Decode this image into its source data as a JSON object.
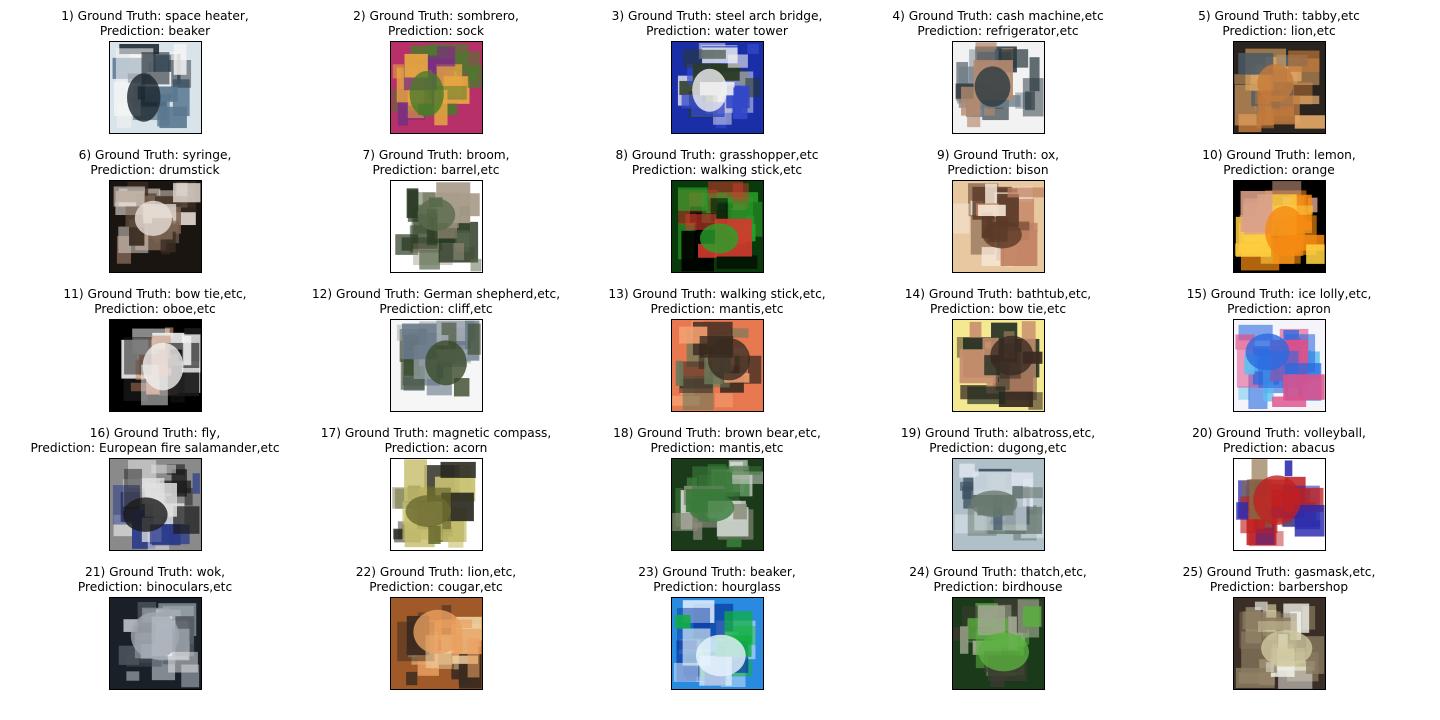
{
  "items": [
    {
      "index": "1)",
      "ground_truth": "space heater,",
      "prediction": "beaker",
      "colors": [
        "#d9e3ea",
        "#1c2730",
        "#5a7890",
        "#f4f4f4"
      ]
    },
    {
      "index": "2)",
      "ground_truth": "sombrero,",
      "prediction": "sock",
      "colors": [
        "#b8306a",
        "#4a7a2c",
        "#e6a640",
        "#7a2f80"
      ]
    },
    {
      "index": "3)",
      "ground_truth": "steel arch bridge,",
      "prediction": "water tower",
      "colors": [
        "#1a2ea8",
        "#f0f0f0",
        "#3348c8",
        "#2a3a22"
      ]
    },
    {
      "index": "4)",
      "ground_truth": "cash machine,etc",
      "prediction": "refrigerator,etc",
      "colors": [
        "#f2f2f2",
        "#2a3940",
        "#b58a70",
        "#6c7c88"
      ]
    },
    {
      "index": "5)",
      "ground_truth": "tabby,etc",
      "prediction": "lion,etc",
      "colors": [
        "#2a2420",
        "#c57a3a",
        "#e3a866",
        "#4a5a66"
      ]
    },
    {
      "index": "6)",
      "ground_truth": "syringe,",
      "prediction": "drumstick",
      "colors": [
        "#1b1512",
        "#e8e0d8",
        "#7a6350",
        "#3b2c22"
      ]
    },
    {
      "index": "7)",
      "ground_truth": "broom,",
      "prediction": "barrel,etc",
      "colors": [
        "#ffffff",
        "#5a6a4c",
        "#2b3a24",
        "#a89c8a"
      ]
    },
    {
      "index": "8)",
      "ground_truth": "grasshopper,etc",
      "prediction": "walking stick,etc",
      "colors": [
        "#0a3a0c",
        "#29a12a",
        "#d33a2e",
        "#000000"
      ]
    },
    {
      "index": "9)",
      "ground_truth": "ox,",
      "prediction": "bison",
      "colors": [
        "#e8c8a0",
        "#5a3a28",
        "#f6e8d8",
        "#c08060"
      ]
    },
    {
      "index": "10)",
      "ground_truth": "lemon,",
      "prediction": "orange",
      "colors": [
        "#000000",
        "#f58a12",
        "#ffd040",
        "#d9a08a"
      ]
    },
    {
      "index": "11)",
      "ground_truth": "bow tie,etc,",
      "prediction": "oboe,etc",
      "colors": [
        "#000000",
        "#f0f0f0",
        "#c08060",
        "#1a1a1a"
      ]
    },
    {
      "index": "12)",
      "ground_truth": "German shepherd,etc,",
      "prediction": "cliff,etc",
      "colors": [
        "#f6f6f6",
        "#3a4a2a",
        "#6a7a8a",
        "#a0a8b0"
      ]
    },
    {
      "index": "13)",
      "ground_truth": "walking stick,etc,",
      "prediction": "mantis,etc",
      "colors": [
        "#e87850",
        "#3a2a20",
        "#f4a070",
        "#6a7a5a"
      ]
    },
    {
      "index": "14)",
      "ground_truth": "bathtub,etc,",
      "prediction": "bow tie,etc",
      "colors": [
        "#f4e890",
        "#3a2a22",
        "#c89070",
        "#1e2a20"
      ]
    },
    {
      "index": "15)",
      "ground_truth": "ice lolly,etc,",
      "prediction": "apron",
      "colors": [
        "#f4f4fa",
        "#2a6ae0",
        "#e0508a",
        "#5ac0f0"
      ]
    },
    {
      "index": "16)",
      "ground_truth": "fly,",
      "prediction": "European fire salamander,etc",
      "colors": [
        "#8a8a8a",
        "#1a1a1a",
        "#e0e0e0",
        "#2a3a8a"
      ]
    },
    {
      "index": "17)",
      "ground_truth": "magnetic compass,",
      "prediction": "acorn",
      "colors": [
        "#ffffff",
        "#6a6a30",
        "#c8c070",
        "#2a2a20"
      ]
    },
    {
      "index": "18)",
      "ground_truth": "brown bear,etc,",
      "prediction": "mantis,etc",
      "colors": [
        "#1a3a1a",
        "#3a7a3a",
        "#8a8a7a",
        "#d0d8d0"
      ]
    },
    {
      "index": "19)",
      "ground_truth": "albatross,etc,",
      "prediction": "dugong,etc",
      "colors": [
        "#b0c0c8",
        "#6a7a70",
        "#e0e8f0",
        "#3a5060"
      ]
    },
    {
      "index": "20)",
      "ground_truth": "volleyball,",
      "prediction": "abacus",
      "colors": [
        "#ffffff",
        "#c02020",
        "#2a2ab0",
        "#8a6a40"
      ]
    },
    {
      "index": "21)",
      "ground_truth": "wok,",
      "prediction": "binoculars,etc",
      "colors": [
        "#1a2028",
        "#a0a8b0",
        "#f0f0f0",
        "#4a5058"
      ]
    },
    {
      "index": "22)",
      "ground_truth": "lion,etc,",
      "prediction": "cougar,etc",
      "colors": [
        "#a05a2a",
        "#e8a060",
        "#3a2a20",
        "#f0d0a0"
      ]
    },
    {
      "index": "23)",
      "ground_truth": "beaker,",
      "prediction": "hourglass",
      "colors": [
        "#2a8ae0",
        "#e8f4ff",
        "#10b040",
        "#0a3aa0"
      ]
    },
    {
      "index": "24)",
      "ground_truth": "thatch,etc,",
      "prediction": "birdhouse",
      "colors": [
        "#1a3a1a",
        "#5ab040",
        "#a0a890",
        "#3a3a30"
      ]
    },
    {
      "index": "25)",
      "ground_truth": "gasmask,etc,",
      "prediction": "barbershop",
      "colors": [
        "#3a2e26",
        "#d0c8a0",
        "#8a7a60",
        "#f0f0e8"
      ]
    }
  ],
  "labels": {
    "ground_truth_prefix": "Ground Truth:",
    "prediction_prefix": "Prediction:"
  }
}
